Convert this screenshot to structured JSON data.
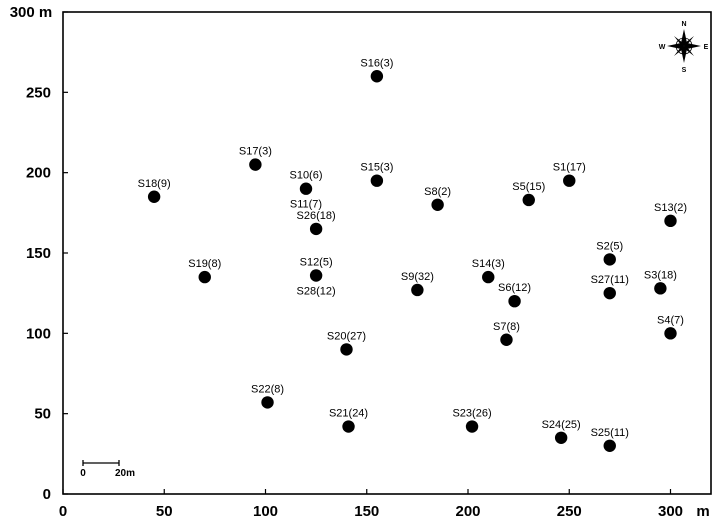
{
  "chart_data": {
    "type": "scatter",
    "xlim": [
      0,
      320
    ],
    "ylim": [
      0,
      300
    ],
    "x_ticks": [
      {
        "value": 0,
        "label": "0"
      },
      {
        "value": 50,
        "label": "50"
      },
      {
        "value": 100,
        "label": "100"
      },
      {
        "value": 150,
        "label": "150"
      },
      {
        "value": 200,
        "label": "200"
      },
      {
        "value": 250,
        "label": "250"
      },
      {
        "value": 300,
        "label": "300"
      }
    ],
    "y_ticks": [
      {
        "value": 0,
        "label": "0"
      },
      {
        "value": 50,
        "label": "50"
      },
      {
        "value": 100,
        "label": "100"
      },
      {
        "value": 150,
        "label": "150"
      },
      {
        "value": 200,
        "label": "200"
      },
      {
        "value": 250,
        "label": "250"
      },
      {
        "value": 300,
        "label": "300 m"
      }
    ],
    "x_unit": "m",
    "grid": false,
    "points": [
      {
        "label": "S1(17)",
        "x": 250,
        "y": 195,
        "label_pos": "above"
      },
      {
        "label": "S2(5)",
        "x": 270,
        "y": 146,
        "label_pos": "above"
      },
      {
        "label": "S3(18)",
        "x": 295,
        "y": 128,
        "label_pos": "above"
      },
      {
        "label": "S4(7)",
        "x": 300,
        "y": 100,
        "label_pos": "above"
      },
      {
        "label": "S5(15)",
        "x": 230,
        "y": 183,
        "label_pos": "above"
      },
      {
        "label": "S6(12)",
        "x": 223,
        "y": 120,
        "label_pos": "above"
      },
      {
        "label": "S7(8)",
        "x": 219,
        "y": 96,
        "label_pos": "above"
      },
      {
        "label": "S8(2)",
        "x": 185,
        "y": 180,
        "label_pos": "above"
      },
      {
        "label": "S9(32)",
        "x": 175,
        "y": 127,
        "label_pos": "above"
      },
      {
        "label": "S10(6)",
        "x": 120,
        "y": 190,
        "label_pos": "above"
      },
      {
        "label": "S11(7)",
        "x": 120,
        "y": 190,
        "label_pos": "below"
      },
      {
        "label": "S12(5)",
        "x": 125,
        "y": 136,
        "label_pos": "above"
      },
      {
        "label": "S13(2)",
        "x": 300,
        "y": 170,
        "label_pos": "above"
      },
      {
        "label": "S14(3)",
        "x": 210,
        "y": 135,
        "label_pos": "above"
      },
      {
        "label": "S15(3)",
        "x": 155,
        "y": 195,
        "label_pos": "above"
      },
      {
        "label": "S16(3)",
        "x": 155,
        "y": 260,
        "label_pos": "above"
      },
      {
        "label": "S17(3)",
        "x": 95,
        "y": 205,
        "label_pos": "above"
      },
      {
        "label": "S18(9)",
        "x": 45,
        "y": 185,
        "label_pos": "above"
      },
      {
        "label": "S19(8)",
        "x": 70,
        "y": 135,
        "label_pos": "above"
      },
      {
        "label": "S20(27)",
        "x": 140,
        "y": 90,
        "label_pos": "above"
      },
      {
        "label": "S21(24)",
        "x": 141,
        "y": 42,
        "label_pos": "above"
      },
      {
        "label": "S22(8)",
        "x": 101,
        "y": 57,
        "label_pos": "above"
      },
      {
        "label": "S23(26)",
        "x": 202,
        "y": 42,
        "label_pos": "above"
      },
      {
        "label": "S24(25)",
        "x": 246,
        "y": 35,
        "label_pos": "above"
      },
      {
        "label": "S25(11)",
        "x": 270,
        "y": 30,
        "label_pos": "above"
      },
      {
        "label": "S26(18)",
        "x": 125,
        "y": 165,
        "label_pos": "above"
      },
      {
        "label": "S27(11)",
        "x": 270,
        "y": 125,
        "label_pos": "above"
      },
      {
        "label": "S28(12)",
        "x": 125,
        "y": 136,
        "label_pos": "below"
      }
    ],
    "scale_bar": {
      "length": 20,
      "start_label": "0",
      "end_label": "20m"
    },
    "compass": {
      "n": "N",
      "s": "S",
      "e": "E",
      "w": "W"
    }
  }
}
